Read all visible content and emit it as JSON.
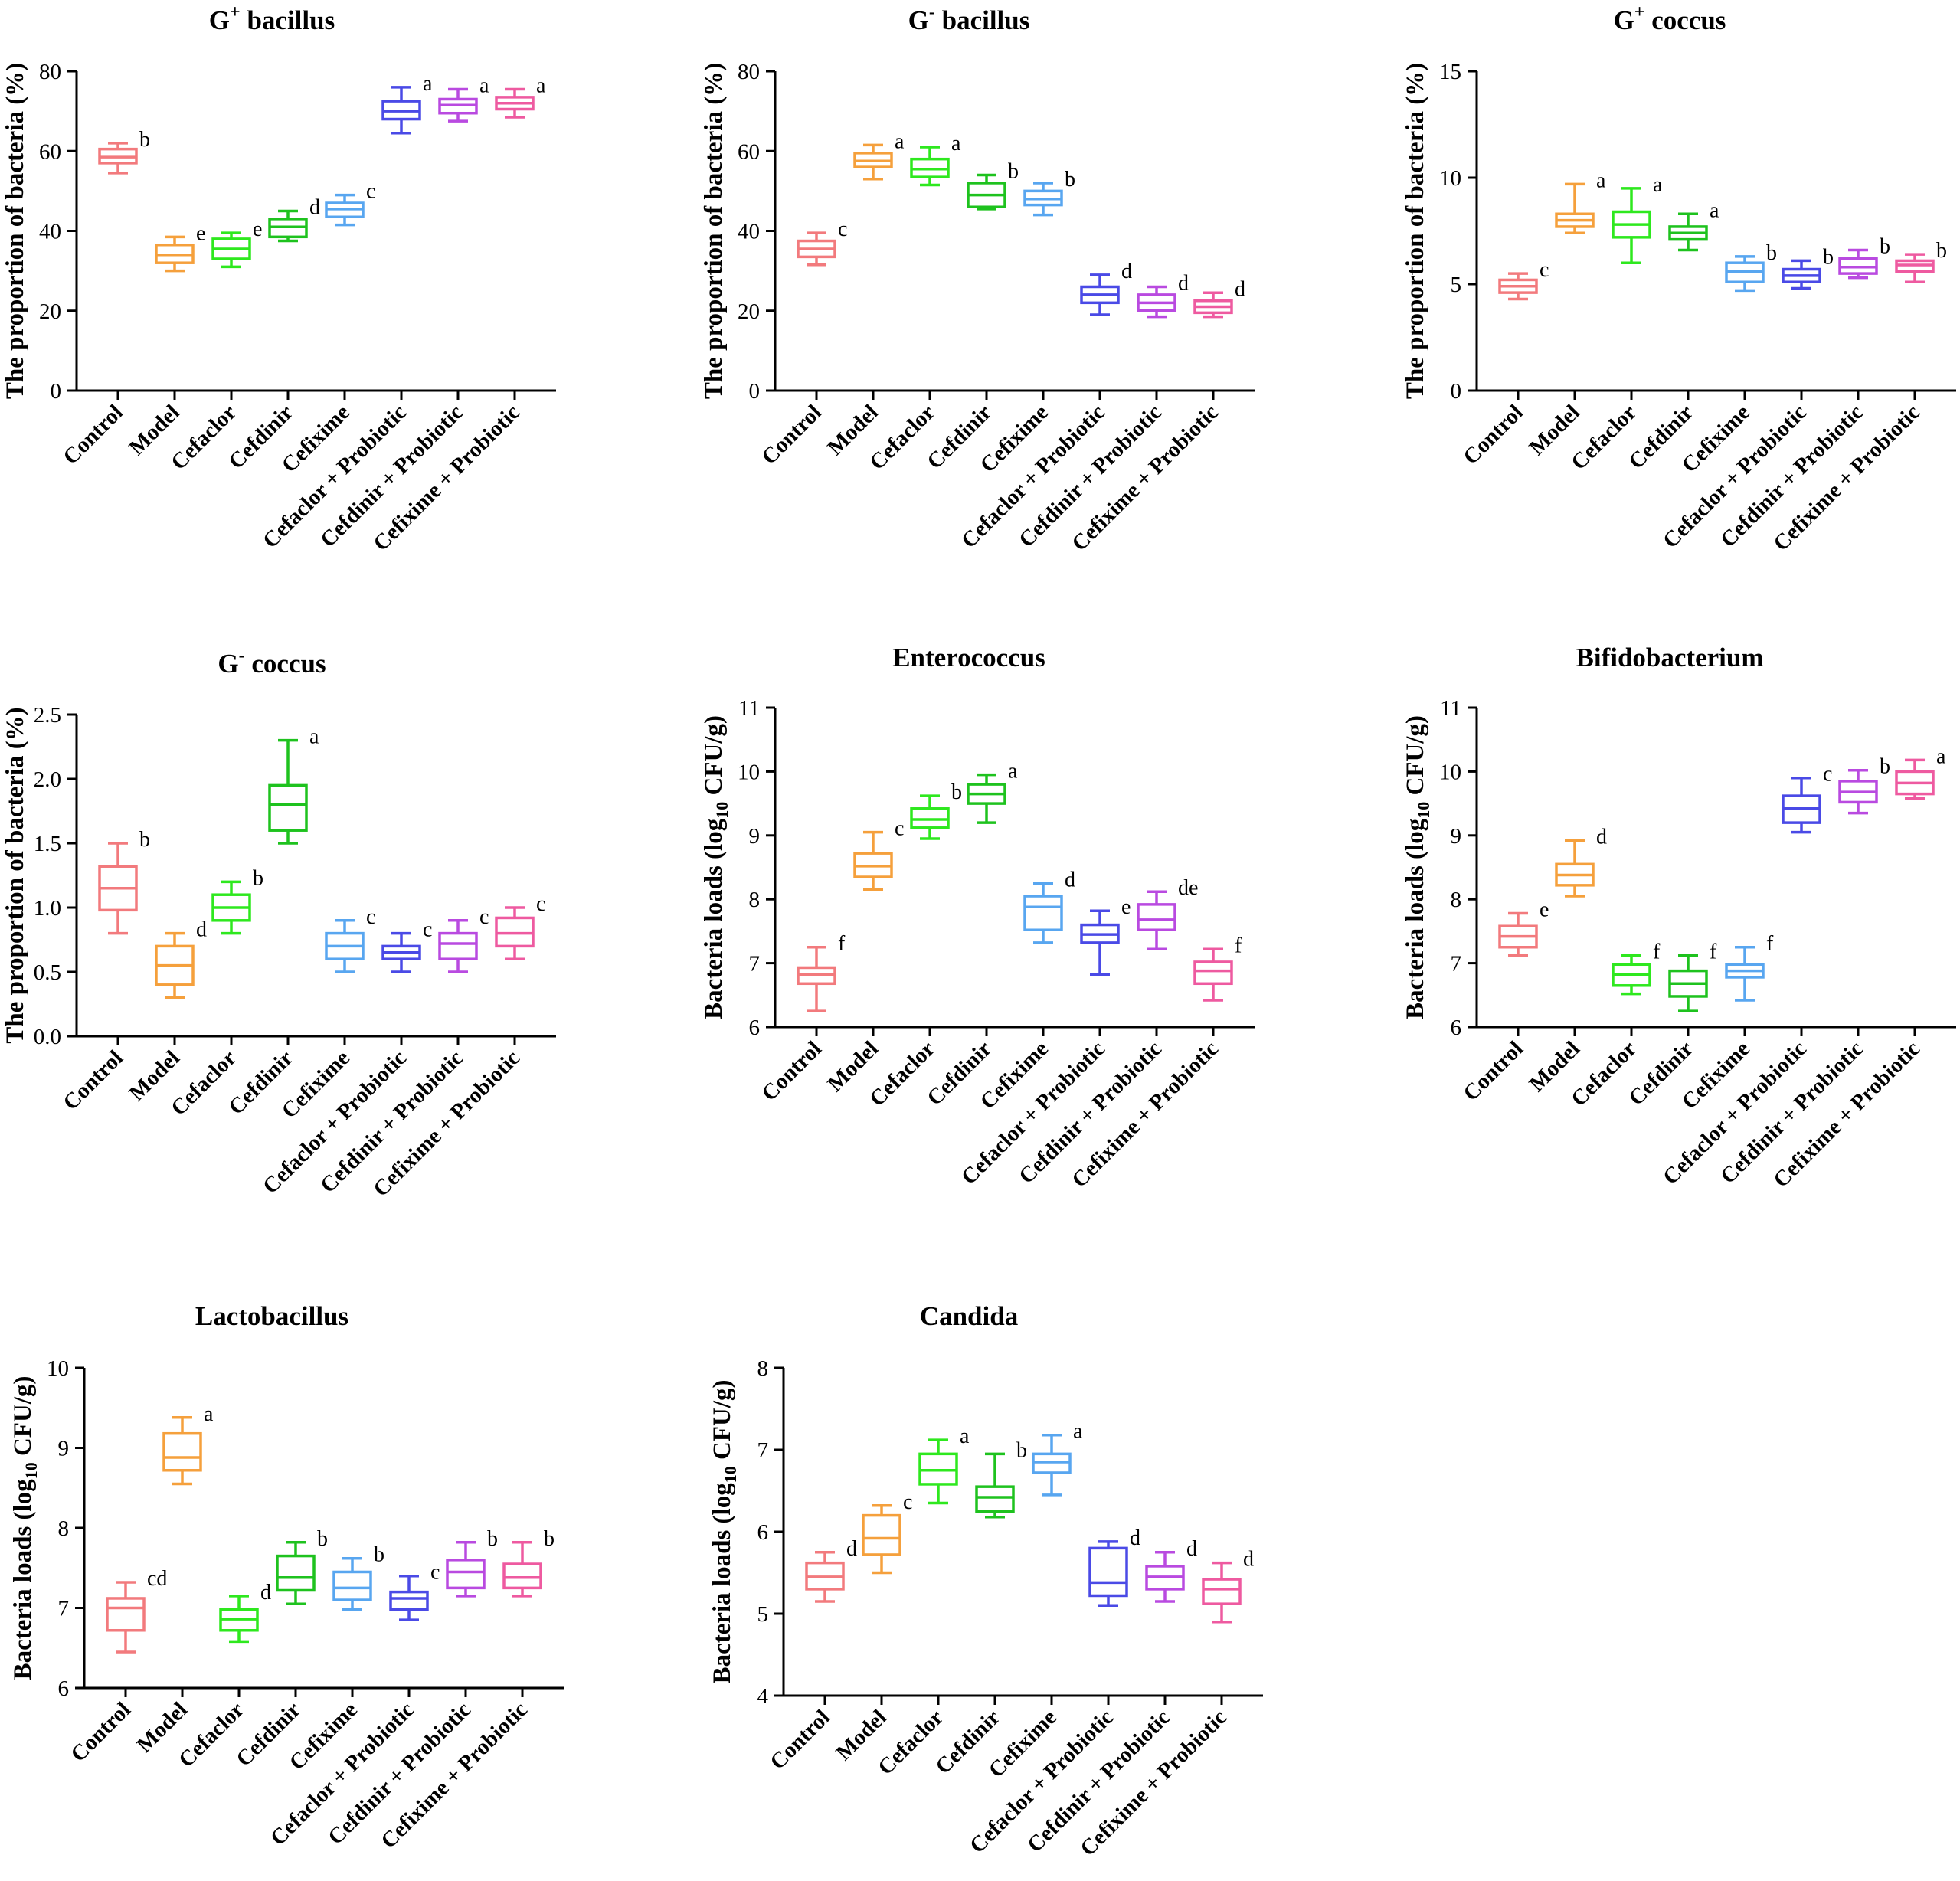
{
  "palette": [
    "#f27a7d",
    "#f5a03c",
    "#2ee81e",
    "#1ec21e",
    "#58a6f0",
    "#4a4ae6",
    "#b94ae0",
    "#ee5aa0"
  ],
  "chart_data": [
    {
      "type": "boxplot",
      "title_main": "G",
      "title_sup": "+",
      "title_rest": " bacillus",
      "ylabel": "The proportion of bacteria (%)",
      "ylim": [
        0,
        80
      ],
      "yticks": [
        "0",
        "20",
        "40",
        "60",
        "80"
      ],
      "categories": [
        "Control",
        "Model",
        "Cefaclor",
        "Cefdinir",
        "Cefixime",
        "Cefaclor + Probiotic",
        "Cefdinir + Probiotic",
        "Cefixime + Probiotic"
      ],
      "boxes": [
        {
          "min": 54.5,
          "q1": 57,
          "median": 58.5,
          "q3": 60.5,
          "max": 62
        },
        {
          "min": 30,
          "q1": 32,
          "median": 34,
          "q3": 36.5,
          "max": 38.5
        },
        {
          "min": 31,
          "q1": 33,
          "median": 35.5,
          "q3": 38,
          "max": 39.5
        },
        {
          "min": 37.5,
          "q1": 38.5,
          "median": 41,
          "q3": 43,
          "max": 45
        },
        {
          "min": 41.5,
          "q1": 43.5,
          "median": 45.5,
          "q3": 47,
          "max": 49
        },
        {
          "min": 64.5,
          "q1": 68,
          "median": 70,
          "q3": 72.5,
          "max": 76
        },
        {
          "min": 67.5,
          "q1": 69.5,
          "median": 71.5,
          "q3": 73,
          "max": 75.5
        },
        {
          "min": 68.5,
          "q1": 70.5,
          "median": 72,
          "q3": 73.5,
          "max": 75.5
        }
      ],
      "letters": [
        "b",
        "e",
        "e",
        "d",
        "c",
        "a",
        "a",
        "a"
      ]
    },
    {
      "type": "boxplot",
      "title_main": "G",
      "title_sup": "-",
      "title_rest": " bacillus",
      "ylabel": "The proportion of bacteria (%)",
      "ylim": [
        0,
        80
      ],
      "yticks": [
        "0",
        "20",
        "40",
        "60",
        "80"
      ],
      "categories": [
        "Control",
        "Model",
        "Cefaclor",
        "Cefdinir",
        "Cefixime",
        "Cefaclor + Probiotic",
        "Cefdinir + Probiotic",
        "Cefixime + Probiotic"
      ],
      "boxes": [
        {
          "min": 31.5,
          "q1": 33.5,
          "median": 35.5,
          "q3": 37.5,
          "max": 39.5
        },
        {
          "min": 53,
          "q1": 56,
          "median": 57.5,
          "q3": 59.5,
          "max": 61.5
        },
        {
          "min": 51.5,
          "q1": 53.5,
          "median": 55.5,
          "q3": 58,
          "max": 61
        },
        {
          "min": 45.5,
          "q1": 46,
          "median": 49,
          "q3": 52,
          "max": 54
        },
        {
          "min": 44,
          "q1": 46.5,
          "median": 48,
          "q3": 50,
          "max": 52
        },
        {
          "min": 19,
          "q1": 22,
          "median": 24,
          "q3": 26,
          "max": 29
        },
        {
          "min": 18.5,
          "q1": 20,
          "median": 22,
          "q3": 24,
          "max": 26
        },
        {
          "min": 18.5,
          "q1": 19.5,
          "median": 21,
          "q3": 22.5,
          "max": 24.5
        }
      ],
      "letters": [
        "c",
        "a",
        "a",
        "b",
        "b",
        "d",
        "d",
        "d"
      ]
    },
    {
      "type": "boxplot",
      "title_main": "G",
      "title_sup": "+",
      "title_rest": " coccus",
      "ylabel": "The proportion of bacteria (%)",
      "ylim": [
        0,
        15
      ],
      "yticks": [
        "0",
        "5",
        "10",
        "15"
      ],
      "categories": [
        "Control",
        "Model",
        "Cefaclor",
        "Cefdinir",
        "Cefixime",
        "Cefaclor + Probiotic",
        "Cefdinir + Probiotic",
        "Cefixime + Probiotic"
      ],
      "boxes": [
        {
          "min": 4.3,
          "q1": 4.6,
          "median": 4.9,
          "q3": 5.2,
          "max": 5.5
        },
        {
          "min": 7.4,
          "q1": 7.7,
          "median": 8.0,
          "q3": 8.3,
          "max": 9.7
        },
        {
          "min": 6.0,
          "q1": 7.2,
          "median": 7.8,
          "q3": 8.4,
          "max": 9.5
        },
        {
          "min": 6.6,
          "q1": 7.1,
          "median": 7.4,
          "q3": 7.7,
          "max": 8.3
        },
        {
          "min": 4.7,
          "q1": 5.1,
          "median": 5.6,
          "q3": 6.0,
          "max": 6.3
        },
        {
          "min": 4.8,
          "q1": 5.1,
          "median": 5.4,
          "q3": 5.7,
          "max": 6.1
        },
        {
          "min": 5.3,
          "q1": 5.5,
          "median": 5.8,
          "q3": 6.2,
          "max": 6.6
        },
        {
          "min": 5.1,
          "q1": 5.6,
          "median": 5.9,
          "q3": 6.1,
          "max": 6.4
        }
      ],
      "letters": [
        "c",
        "a",
        "a",
        "a",
        "b",
        "b",
        "b",
        "b"
      ]
    },
    {
      "type": "boxplot",
      "title_main": "G",
      "title_sup": "-",
      "title_rest": " coccus",
      "ylabel": "The proportion of bacteria (%)",
      "ylim": [
        0,
        2.5
      ],
      "yticks": [
        "0.0",
        "0.5",
        "1.0",
        "1.5",
        "2.0",
        "2.5"
      ],
      "categories": [
        "Control",
        "Model",
        "Cefaclor",
        "Cefdinir",
        "Cefixime",
        "Cefaclor + Probiotic",
        "Cefdinir + Probiotic",
        "Cefixime + Probiotic"
      ],
      "boxes": [
        {
          "min": 0.8,
          "q1": 0.98,
          "median": 1.15,
          "q3": 1.32,
          "max": 1.5
        },
        {
          "min": 0.3,
          "q1": 0.4,
          "median": 0.55,
          "q3": 0.7,
          "max": 0.8
        },
        {
          "min": 0.8,
          "q1": 0.9,
          "median": 1.0,
          "q3": 1.1,
          "max": 1.2
        },
        {
          "min": 1.5,
          "q1": 1.6,
          "median": 1.8,
          "q3": 1.95,
          "max": 2.3
        },
        {
          "min": 0.5,
          "q1": 0.6,
          "median": 0.7,
          "q3": 0.8,
          "max": 0.9
        },
        {
          "min": 0.5,
          "q1": 0.6,
          "median": 0.65,
          "q3": 0.7,
          "max": 0.8
        },
        {
          "min": 0.5,
          "q1": 0.6,
          "median": 0.72,
          "q3": 0.8,
          "max": 0.9
        },
        {
          "min": 0.6,
          "q1": 0.7,
          "median": 0.8,
          "q3": 0.92,
          "max": 1.0
        }
      ],
      "letters": [
        "b",
        "d",
        "b",
        "a",
        "c",
        "c",
        "c",
        "c"
      ]
    },
    {
      "type": "boxplot",
      "title_main": "Enterococcus",
      "title_sup": "",
      "title_rest": "",
      "ylabel_pre": "Bacteria loads (log",
      "ylabel_sub": "10",
      "ylabel_post": " CFU/g)",
      "ylim": [
        6,
        11
      ],
      "yticks": [
        "6",
        "7",
        "8",
        "9",
        "10",
        "11"
      ],
      "categories": [
        "Control",
        "Model",
        "Cefaclor",
        "Cefdinir",
        "Cefixime",
        "Cefaclor + Probiotic",
        "Cefdinir + Probiotic",
        "Cefixime + Probiotic"
      ],
      "boxes": [
        {
          "min": 6.25,
          "q1": 6.68,
          "median": 6.82,
          "q3": 6.93,
          "max": 7.25
        },
        {
          "min": 8.15,
          "q1": 8.35,
          "median": 8.52,
          "q3": 8.72,
          "max": 9.05
        },
        {
          "min": 8.95,
          "q1": 9.12,
          "median": 9.25,
          "q3": 9.42,
          "max": 9.62
        },
        {
          "min": 9.2,
          "q1": 9.5,
          "median": 9.65,
          "q3": 9.8,
          "max": 9.95
        },
        {
          "min": 7.32,
          "q1": 7.52,
          "median": 7.88,
          "q3": 8.05,
          "max": 8.25
        },
        {
          "min": 6.82,
          "q1": 7.32,
          "median": 7.45,
          "q3": 7.6,
          "max": 7.82
        },
        {
          "min": 7.22,
          "q1": 7.52,
          "median": 7.68,
          "q3": 7.92,
          "max": 8.12
        },
        {
          "min": 6.42,
          "q1": 6.68,
          "median": 6.88,
          "q3": 7.02,
          "max": 7.22
        }
      ],
      "letters": [
        "f",
        "c",
        "b",
        "a",
        "d",
        "e",
        "de",
        "f"
      ]
    },
    {
      "type": "boxplot",
      "title_main": "Bifidobacterium",
      "title_sup": "",
      "title_rest": "",
      "ylabel_pre": "Bacteria loads (log",
      "ylabel_sub": "10",
      "ylabel_post": " CFU/g)",
      "ylim": [
        6,
        11
      ],
      "yticks": [
        "6",
        "7",
        "8",
        "9",
        "10",
        "11"
      ],
      "categories": [
        "Control",
        "Model",
        "Cefaclor",
        "Cefdinir",
        "Cefixime",
        "Cefaclor + Probiotic",
        "Cefdinir + Probiotic",
        "Cefixime + Probiotic"
      ],
      "boxes": [
        {
          "min": 7.12,
          "q1": 7.25,
          "median": 7.42,
          "q3": 7.58,
          "max": 7.78
        },
        {
          "min": 8.05,
          "q1": 8.22,
          "median": 8.38,
          "q3": 8.55,
          "max": 8.92
        },
        {
          "min": 6.52,
          "q1": 6.65,
          "median": 6.82,
          "q3": 6.98,
          "max": 7.12
        },
        {
          "min": 6.25,
          "q1": 6.48,
          "median": 6.68,
          "q3": 6.88,
          "max": 7.12
        },
        {
          "min": 6.42,
          "q1": 6.78,
          "median": 6.88,
          "q3": 6.98,
          "max": 7.25
        },
        {
          "min": 9.05,
          "q1": 9.2,
          "median": 9.42,
          "q3": 9.62,
          "max": 9.9
        },
        {
          "min": 9.35,
          "q1": 9.52,
          "median": 9.68,
          "q3": 9.85,
          "max": 10.02
        },
        {
          "min": 9.58,
          "q1": 9.65,
          "median": 9.82,
          "q3": 10.0,
          "max": 10.18
        }
      ],
      "letters": [
        "e",
        "d",
        "f",
        "f",
        "f",
        "c",
        "b",
        "a"
      ]
    },
    {
      "type": "boxplot",
      "title_main": "Lactobacillus",
      "title_sup": "",
      "title_rest": "",
      "ylabel_pre": "Bacteria loads (log",
      "ylabel_sub": "10",
      "ylabel_post": " CFU/g)",
      "ylim": [
        6,
        10
      ],
      "yticks": [
        "6",
        "7",
        "8",
        "9",
        "10"
      ],
      "categories": [
        "Control",
        "Model",
        "Cefaclor",
        "Cefdinir",
        "Cefixime",
        "Cefaclor + Probiotic",
        "Cefdinir + Probiotic",
        "Cefixime + Probiotic"
      ],
      "boxes": [
        {
          "min": 6.45,
          "q1": 6.72,
          "median": 7.0,
          "q3": 7.12,
          "max": 7.32
        },
        {
          "min": 8.55,
          "q1": 8.72,
          "median": 8.88,
          "q3": 9.18,
          "max": 9.38
        },
        {
          "min": 6.58,
          "q1": 6.72,
          "median": 6.86,
          "q3": 6.98,
          "max": 7.15
        },
        {
          "min": 7.05,
          "q1": 7.22,
          "median": 7.38,
          "q3": 7.65,
          "max": 7.82
        },
        {
          "min": 6.98,
          "q1": 7.1,
          "median": 7.25,
          "q3": 7.45,
          "max": 7.62
        },
        {
          "min": 6.85,
          "q1": 6.98,
          "median": 7.12,
          "q3": 7.2,
          "max": 7.4
        },
        {
          "min": 7.15,
          "q1": 7.25,
          "median": 7.45,
          "q3": 7.6,
          "max": 7.82
        },
        {
          "min": 7.15,
          "q1": 7.25,
          "median": 7.38,
          "q3": 7.55,
          "max": 7.82
        }
      ],
      "letters": [
        "cd",
        "a",
        "d",
        "b",
        "b",
        "c",
        "b",
        "b"
      ]
    },
    {
      "type": "boxplot",
      "title_main": "Candida",
      "title_sup": "",
      "title_rest": "",
      "ylabel_pre": "Bacteria loads (log",
      "ylabel_sub": "10",
      "ylabel_post": " CFU/g)",
      "ylim": [
        4,
        8
      ],
      "yticks": [
        "4",
        "5",
        "6",
        "7",
        "8"
      ],
      "categories": [
        "Control",
        "Model",
        "Cefaclor",
        "Cefdinir",
        "Cefixime",
        "Cefaclor + Probiotic",
        "Cefdinir + Probiotic",
        "Cefixime + Probiotic"
      ],
      "boxes": [
        {
          "min": 5.15,
          "q1": 5.3,
          "median": 5.45,
          "q3": 5.62,
          "max": 5.75
        },
        {
          "min": 5.5,
          "q1": 5.72,
          "median": 5.92,
          "q3": 6.2,
          "max": 6.32
        },
        {
          "min": 6.35,
          "q1": 6.58,
          "median": 6.75,
          "q3": 6.95,
          "max": 7.12
        },
        {
          "min": 6.18,
          "q1": 6.25,
          "median": 6.42,
          "q3": 6.55,
          "max": 6.95
        },
        {
          "min": 6.45,
          "q1": 6.72,
          "median": 6.85,
          "q3": 6.95,
          "max": 7.18
        },
        {
          "min": 5.1,
          "q1": 5.22,
          "median": 5.38,
          "q3": 5.8,
          "max": 5.88
        },
        {
          "min": 5.15,
          "q1": 5.3,
          "median": 5.45,
          "q3": 5.58,
          "max": 5.75
        },
        {
          "min": 4.9,
          "q1": 5.12,
          "median": 5.3,
          "q3": 5.42,
          "max": 5.62
        }
      ],
      "letters": [
        "d",
        "c",
        "a",
        "b",
        "a",
        "d",
        "d",
        "d"
      ]
    }
  ]
}
